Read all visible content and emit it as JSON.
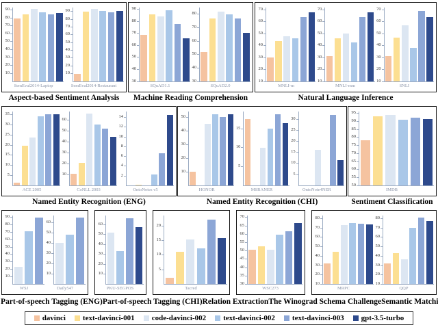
{
  "legend": {
    "items": [
      {
        "label": "davinci",
        "color": "#F5C3A0"
      },
      {
        "label": "text-davinci-001",
        "color": "#FCDF92"
      },
      {
        "label": "code-davinci-002",
        "color": "#DCE6F2"
      },
      {
        "label": "text-davinci-002",
        "color": "#A9C7E8"
      },
      {
        "label": "text-davinci-003",
        "color": "#8CA6D6"
      },
      {
        "label": "gpt-3.5-turbo",
        "color": "#2E4A8C"
      }
    ]
  },
  "chart_data": [
    {
      "type": "bar",
      "id": "asa",
      "row": 1,
      "title": "Aspect-based Sentiment Analysis",
      "subplots": [
        {
          "dataset": "SemEval2014-Laptop",
          "ymin": 0,
          "ytop": 93,
          "ticks": [
            10,
            20,
            30,
            40,
            50,
            60,
            70,
            80,
            90
          ],
          "bars": [
            {
              "model": "davinci",
              "value": 79
            },
            {
              "model": "text-davinci-001",
              "value": 84
            },
            {
              "model": "code-davinci-002",
              "value": 91
            },
            {
              "model": "text-davinci-002",
              "value": 87
            },
            {
              "model": "text-davinci-003",
              "value": 84
            },
            {
              "model": "gpt-3.5-turbo",
              "value": 86
            }
          ]
        },
        {
          "dataset": "SemEval2014-Restaurant",
          "ymin": 0,
          "ytop": 95,
          "ticks": [
            10,
            20,
            30,
            40,
            50,
            60,
            70,
            80,
            90
          ],
          "bars": [
            {
              "model": "davinci",
              "value": 10
            },
            {
              "model": "text-davinci-001",
              "value": 90
            },
            {
              "model": "code-davinci-002",
              "value": 93
            },
            {
              "model": "text-davinci-002",
              "value": 91
            },
            {
              "model": "text-davinci-003",
              "value": 89
            },
            {
              "model": "gpt-3.5-turbo",
              "value": 91
            }
          ]
        }
      ]
    },
    {
      "type": "bar",
      "id": "mrc",
      "row": 1,
      "title": "Machine Reading Comprehension",
      "subplots": [
        {
          "dataset": "SQuAD1.1",
          "ymin": 30,
          "ytop": 91.5,
          "ticks": [
            30,
            40,
            50,
            60,
            70,
            80,
            90
          ],
          "bars": [
            {
              "model": "davinci",
              "value": 69
            },
            {
              "model": "text-davinci-001",
              "value": 86
            },
            {
              "model": "code-davinci-002",
              "value": 84
            },
            {
              "model": "text-davinci-002",
              "value": 89
            },
            {
              "model": "text-davinci-003",
              "value": 78
            },
            {
              "model": "gpt-3.5-turbo",
              "value": 66
            }
          ]
        },
        {
          "dataset": "SQuAD2.0",
          "ymin": 30,
          "ytop": 85,
          "ticks": [
            30,
            40,
            50,
            60,
            70,
            80
          ],
          "bars": [
            {
              "model": "davinci",
              "value": 52
            },
            {
              "model": "text-davinci-001",
              "value": 77
            },
            {
              "model": "code-davinci-002",
              "value": 82
            },
            {
              "model": "text-davinci-002",
              "value": 80
            },
            {
              "model": "text-davinci-003",
              "value": 77
            },
            {
              "model": "gpt-3.5-turbo",
              "value": 66
            }
          ]
        }
      ]
    },
    {
      "type": "bar",
      "id": "nli",
      "row": 1,
      "title": "Natural Language Inference",
      "subplots": [
        {
          "dataset": "MNLI-m",
          "ymin": 10,
          "ytop": 72,
          "ticks": [
            10,
            20,
            30,
            40,
            50,
            60,
            70
          ],
          "bars": [
            {
              "model": "davinci",
              "value": 30
            },
            {
              "model": "text-davinci-001",
              "value": 44
            },
            {
              "model": "code-davinci-002",
              "value": 48
            },
            {
              "model": "text-davinci-002",
              "value": 46
            },
            {
              "model": "text-davinci-003",
              "value": 64
            },
            {
              "model": "gpt-3.5-turbo",
              "value": 68
            }
          ]
        },
        {
          "dataset": "MNLI-mm",
          "ymin": 10,
          "ytop": 72,
          "ticks": [
            10,
            20,
            30,
            40,
            50,
            60,
            70
          ],
          "bars": [
            {
              "model": "davinci",
              "value": 31
            },
            {
              "model": "text-davinci-001",
              "value": 46
            },
            {
              "model": "code-davinci-002",
              "value": 50
            },
            {
              "model": "text-davinci-002",
              "value": 43
            },
            {
              "model": "text-davinci-003",
              "value": 64
            },
            {
              "model": "gpt-3.5-turbo",
              "value": 68
            }
          ]
        },
        {
          "dataset": "SNLI",
          "ymin": 10,
          "ytop": 72,
          "ticks": [
            10,
            20,
            30,
            40,
            50,
            60,
            70
          ],
          "bars": [
            {
              "model": "davinci",
              "value": 31
            },
            {
              "model": "text-davinci-001",
              "value": 47
            },
            {
              "model": "code-davinci-002",
              "value": 57
            },
            {
              "model": "text-davinci-002",
              "value": 38
            },
            {
              "model": "text-davinci-003",
              "value": 69
            },
            {
              "model": "gpt-3.5-turbo",
              "value": 64
            }
          ]
        }
      ]
    },
    {
      "type": "bar",
      "id": "ner-eng",
      "row": 2,
      "title": "Named Entity Recognition (ENG)",
      "subplots": [
        {
          "dataset": "ACE 2005",
          "ymin": 0,
          "ytop": 36.5,
          "ticks": [
            5,
            10,
            15,
            20,
            25,
            30,
            35
          ],
          "bars": [
            {
              "model": "davinci",
              "value": 1.5
            },
            {
              "model": "text-davinci-001",
              "value": 19.5
            },
            {
              "model": "code-davinci-002",
              "value": 23.5
            },
            {
              "model": "text-davinci-002",
              "value": 34
            },
            {
              "model": "text-davinci-003",
              "value": 35
            },
            {
              "model": "gpt-3.5-turbo",
              "value": 35
            }
          ]
        },
        {
          "dataset": "CoNLL 2003",
          "ymin": 0,
          "ytop": 68,
          "ticks": [
            10,
            20,
            30,
            40,
            50,
            60
          ],
          "bars": [
            {
              "model": "davinci",
              "value": 11
            },
            {
              "model": "text-davinci-001",
              "value": 21
            },
            {
              "model": "code-davinci-002",
              "value": 66
            },
            {
              "model": "text-davinci-002",
              "value": 56
            },
            {
              "model": "text-davinci-003",
              "value": 52
            },
            {
              "model": "gpt-3.5-turbo",
              "value": 45
            }
          ]
        },
        {
          "dataset": "OntoNotes v5",
          "ymin": 0,
          "ytop": 15.2,
          "ticks": [
            2,
            4,
            6,
            8,
            10,
            12,
            14
          ],
          "bars": [
            {
              "model": "davinci",
              "value": null
            },
            {
              "model": "text-davinci-001",
              "value": 0.2
            },
            {
              "model": "code-davinci-002",
              "value": null
            },
            {
              "model": "text-davinci-002",
              "value": 2.2
            },
            {
              "model": "text-davinci-003",
              "value": 6.6
            },
            {
              "model": "gpt-3.5-turbo",
              "value": 14.5
            }
          ]
        }
      ]
    },
    {
      "type": "bar",
      "id": "ner-chi",
      "row": 2,
      "title": "Named Entity Recognition (CHI)",
      "subplots": [
        {
          "dataset": "HONOR",
          "ymin": 0,
          "ytop": 54,
          "ticks": [
            10,
            20,
            30,
            40,
            50
          ],
          "bars": [
            {
              "model": "davinci",
              "value": 10
            },
            {
              "model": "text-davinci-001",
              "value": null
            },
            {
              "model": "code-davinci-002",
              "value": 45
            },
            {
              "model": "text-davinci-002",
              "value": 52
            },
            {
              "model": "text-davinci-003",
              "value": 50
            },
            {
              "model": "gpt-3.5-turbo",
              "value": 52
            }
          ]
        },
        {
          "dataset": "MSRANER",
          "ymin": 0,
          "ytop": 19.5,
          "ticks": [
            5,
            10,
            15
          ],
          "bars": [
            {
              "model": "davinci",
              "value": 17.5
            },
            {
              "model": "text-davinci-001",
              "value": null
            },
            {
              "model": "code-davinci-002",
              "value": 10
            },
            {
              "model": "text-davinci-002",
              "value": 15
            },
            {
              "model": "text-davinci-003",
              "value": 18.7
            },
            {
              "model": "gpt-3.5-turbo",
              "value": 16.5
            }
          ]
        },
        {
          "dataset": "OntoNote4NER",
          "ymin": 0,
          "ytop": 33.5,
          "ticks": [
            5,
            10,
            15,
            20,
            25,
            30
          ],
          "bars": [
            {
              "model": "davinci",
              "value": null
            },
            {
              "model": "text-davinci-001",
              "value": null
            },
            {
              "model": "code-davinci-002",
              "value": 16
            },
            {
              "model": "text-davinci-002",
              "value": null
            },
            {
              "model": "text-davinci-003",
              "value": 32
            },
            {
              "model": "gpt-3.5-turbo",
              "value": 11.5
            }
          ]
        }
      ]
    },
    {
      "type": "bar",
      "id": "sc",
      "row": 2,
      "title": "Sentiment Classification",
      "subplots": [
        {
          "dataset": "IMDB",
          "ymin": 50,
          "ytop": 96,
          "ticks": [
            50,
            55,
            60,
            65,
            70,
            75,
            80,
            85,
            90,
            95
          ],
          "bars": [
            {
              "model": "davinci",
              "value": 78
            },
            {
              "model": "text-davinci-001",
              "value": 93
            },
            {
              "model": "code-davinci-002",
              "value": 94
            },
            {
              "model": "text-davinci-002",
              "value": 91
            },
            {
              "model": "text-davinci-003",
              "value": 92
            },
            {
              "model": "gpt-3.5-turbo",
              "value": 91.5
            }
          ]
        }
      ]
    },
    {
      "type": "bar",
      "id": "pos-eng",
      "row": 3,
      "title": "Part-of-speech Tagging (ENG)",
      "subplots": [
        {
          "dataset": "WSJ",
          "ymin": 0,
          "ytop": 92,
          "ticks": [
            10,
            20,
            30,
            40,
            50,
            60,
            70,
            80,
            90
          ],
          "bars": [
            {
              "model": "code-davinci-002",
              "value": 23
            },
            {
              "model": "text-davinci-002",
              "value": 71
            },
            {
              "model": "text-davinci-003",
              "value": 89
            }
          ]
        },
        {
          "dataset": "Daily547",
          "ymin": 0,
          "ytop": 67,
          "ticks": [
            10,
            20,
            30,
            40,
            50,
            60
          ],
          "bars": [
            {
              "model": "code-davinci-002",
              "value": 40
            },
            {
              "model": "text-davinci-002",
              "value": 48
            },
            {
              "model": "text-davinci-003",
              "value": 65
            }
          ]
        }
      ]
    },
    {
      "type": "bar",
      "id": "pos-chi",
      "row": 3,
      "title": "Part-of-speech Tagging (CHI)",
      "subplots": [
        {
          "dataset": "PKU-SEGPOS",
          "ymin": 0,
          "ytop": 69,
          "ticks": [
            10,
            20,
            30,
            40,
            50,
            60
          ],
          "bars": [
            {
              "model": "code-davinci-002",
              "value": 52
            },
            {
              "model": "text-davinci-002",
              "value": 33
            },
            {
              "model": "text-davinci-003",
              "value": 66
            },
            {
              "model": "gpt-3.5-turbo",
              "value": 57
            }
          ]
        }
      ]
    },
    {
      "type": "bar",
      "id": "re",
      "row": 3,
      "title": "Relation Extraction",
      "subplots": [
        {
          "dataset": "Tacred",
          "ymin": 0,
          "ytop": 23.5,
          "ticks": [
            5,
            10,
            15,
            20
          ],
          "bars": [
            {
              "model": "davinci",
              "value": 2
            },
            {
              "model": "text-davinci-001",
              "value": 11
            },
            {
              "model": "code-davinci-002",
              "value": 15.2
            },
            {
              "model": "text-davinci-002",
              "value": 12.2
            },
            {
              "model": "text-davinci-003",
              "value": 22
            },
            {
              "model": "gpt-3.5-turbo",
              "value": 15.8
            }
          ]
        }
      ]
    },
    {
      "type": "bar",
      "id": "wsc",
      "row": 3,
      "title": "The Winograd Schema Challenge",
      "subplots": [
        {
          "dataset": "WSC273",
          "ymin": 30,
          "ytop": 71,
          "ticks": [
            30,
            35,
            40,
            45,
            50,
            55,
            60,
            65,
            70
          ],
          "bars": [
            {
              "model": "davinci",
              "value": 50.5
            },
            {
              "model": "text-davinci-001",
              "value": 52.5
            },
            {
              "model": "code-davinci-002",
              "value": 50.5
            },
            {
              "model": "text-davinci-002",
              "value": 59.5
            },
            {
              "model": "text-davinci-003",
              "value": 61.5
            },
            {
              "model": "gpt-3.5-turbo",
              "value": 66.5
            }
          ]
        }
      ]
    },
    {
      "type": "bar",
      "id": "sm",
      "row": 3,
      "title": "Semantic Matching",
      "subplots": [
        {
          "dataset": "MRPC",
          "ymin": 10,
          "ytop": 83,
          "ticks": [
            10,
            20,
            30,
            40,
            50,
            60,
            70,
            80
          ],
          "bars": [
            {
              "model": "davinci",
              "value": 32
            },
            {
              "model": "text-davinci-001",
              "value": 44
            },
            {
              "model": "code-davinci-002",
              "value": 73
            },
            {
              "model": "text-davinci-002",
              "value": 75
            },
            {
              "model": "text-davinci-003",
              "value": 74.5
            },
            {
              "model": "gpt-3.5-turbo",
              "value": 73.5
            }
          ]
        },
        {
          "dataset": "QQP",
          "ymin": 10,
          "ytop": 83,
          "ticks": [
            10,
            20,
            30,
            40,
            50,
            60,
            70,
            80
          ],
          "bars": [
            {
              "model": "davinci",
              "value": 32
            },
            {
              "model": "text-davinci-001",
              "value": 43
            },
            {
              "model": "code-davinci-002",
              "value": 36
            },
            {
              "model": "text-davinci-002",
              "value": 70
            },
            {
              "model": "text-davinci-003",
              "value": 81
            },
            {
              "model": "gpt-3.5-turbo",
              "value": 77
            }
          ]
        }
      ]
    }
  ]
}
